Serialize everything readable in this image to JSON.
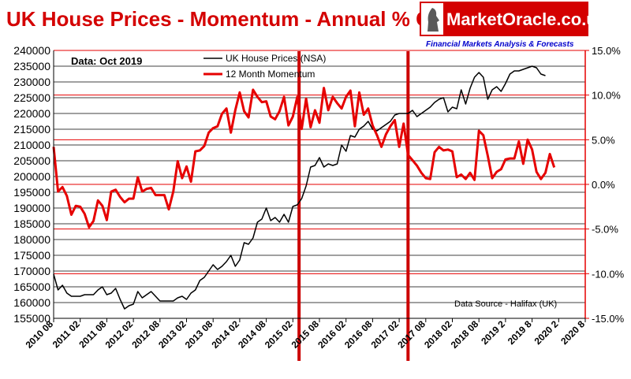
{
  "logo": {
    "name": "MarketOracle.co.uk",
    "tagline": "Financial Markets Analysis & Forecasts"
  },
  "colors": {
    "title": "#d40000",
    "momentum": "#e60000",
    "price": "#000000",
    "marker": "#cc0000"
  },
  "chart_data": {
    "type": "line",
    "title": "UK House Prices - Momentum - Annual % Change",
    "annotation": "Data:  Oct 2019",
    "source": "Data Source - Halifax (UK)",
    "x_tick_labels": [
      "2010 08",
      "2011 02",
      "2011 08",
      "2012 02",
      "2012 08",
      "2013 02",
      "2013 08",
      "2014 02",
      "2014 08",
      "2015 02",
      "2015 08",
      "2016 02",
      "2016 08",
      "2017 02",
      "2017 08",
      "2018 02",
      "2018 08",
      "2019 2",
      "2019 8",
      "2020 2",
      "2020 8"
    ],
    "x_range": [
      2010.5833,
      2020.5833
    ],
    "y_left": {
      "range": [
        155000,
        240000
      ],
      "tick_labels": [
        "155000",
        "160000",
        "165000",
        "170000",
        "175000",
        "180000",
        "185000",
        "190000",
        "195000",
        "200000",
        "205000",
        "210000",
        "215000",
        "220000",
        "225000",
        "230000",
        "235000",
        "240000"
      ]
    },
    "y_right": {
      "range": [
        -15,
        15
      ],
      "tick_labels": [
        "15.0%",
        "10.0%",
        "5.0%",
        "0.0%",
        "-5.0%",
        "-10.0%",
        "-15.0%"
      ]
    },
    "vertical_markers": [
      2015.2,
      2017.25
    ],
    "series": [
      {
        "name": "UK House Prices (NSA)",
        "axis": "left",
        "color": "#000000",
        "points": [
          [
            2010.5833,
            169000
          ],
          [
            2010.6667,
            164000
          ],
          [
            2010.75,
            165500
          ],
          [
            2010.8333,
            163000
          ],
          [
            2010.9167,
            162000
          ],
          [
            2011.0,
            162000
          ],
          [
            2011.0833,
            162000
          ],
          [
            2011.1667,
            162500
          ],
          [
            2011.25,
            162500
          ],
          [
            2011.3333,
            162500
          ],
          [
            2011.4167,
            164000
          ],
          [
            2011.5,
            165000
          ],
          [
            2011.5833,
            162500
          ],
          [
            2011.6667,
            163000
          ],
          [
            2011.75,
            164500
          ],
          [
            2011.8333,
            161000
          ],
          [
            2011.9167,
            158000
          ],
          [
            2012.0,
            159000
          ],
          [
            2012.0833,
            159500
          ],
          [
            2012.1667,
            163500
          ],
          [
            2012.25,
            161500
          ],
          [
            2012.3333,
            162500
          ],
          [
            2012.4167,
            163500
          ],
          [
            2012.5,
            162000
          ],
          [
            2012.5833,
            160500
          ],
          [
            2012.6667,
            160500
          ],
          [
            2012.75,
            160500
          ],
          [
            2012.8333,
            160500
          ],
          [
            2012.9167,
            161500
          ],
          [
            2013.0,
            162000
          ],
          [
            2013.0833,
            161000
          ],
          [
            2013.1667,
            163000
          ],
          [
            2013.25,
            164000
          ],
          [
            2013.3333,
            167000
          ],
          [
            2013.4167,
            168000
          ],
          [
            2013.5,
            170000
          ],
          [
            2013.5833,
            172000
          ],
          [
            2013.6667,
            170500
          ],
          [
            2013.75,
            171500
          ],
          [
            2013.8333,
            173000
          ],
          [
            2013.9167,
            175000
          ],
          [
            2014.0,
            171500
          ],
          [
            2014.0833,
            173500
          ],
          [
            2014.1667,
            179000
          ],
          [
            2014.25,
            178500
          ],
          [
            2014.3333,
            180500
          ],
          [
            2014.4167,
            185500
          ],
          [
            2014.5,
            186500
          ],
          [
            2014.5833,
            190000
          ],
          [
            2014.6667,
            186000
          ],
          [
            2014.75,
            187000
          ],
          [
            2014.8333,
            185500
          ],
          [
            2014.9167,
            188000
          ],
          [
            2015.0,
            185500
          ],
          [
            2015.0833,
            190500
          ],
          [
            2015.1667,
            191000
          ],
          [
            2015.25,
            193000
          ],
          [
            2015.3333,
            197000
          ],
          [
            2015.4167,
            203000
          ],
          [
            2015.5,
            203500
          ],
          [
            2015.5833,
            206000
          ],
          [
            2015.6667,
            203000
          ],
          [
            2015.75,
            204000
          ],
          [
            2015.8333,
            203500
          ],
          [
            2015.9167,
            204000
          ],
          [
            2016.0,
            210000
          ],
          [
            2016.0833,
            208000
          ],
          [
            2016.1667,
            213000
          ],
          [
            2016.25,
            212500
          ],
          [
            2016.3333,
            215000
          ],
          [
            2016.4167,
            216000
          ],
          [
            2016.5,
            217500
          ],
          [
            2016.5833,
            215000
          ],
          [
            2016.6667,
            214500
          ],
          [
            2016.75,
            215500
          ],
          [
            2016.8333,
            216500
          ],
          [
            2016.9167,
            217500
          ],
          [
            2017.0,
            219500
          ],
          [
            2017.0833,
            220000
          ],
          [
            2017.1667,
            220000
          ],
          [
            2017.25,
            220000
          ],
          [
            2017.3333,
            221000
          ],
          [
            2017.4167,
            219000
          ],
          [
            2017.5,
            220000
          ],
          [
            2017.5833,
            221000
          ],
          [
            2017.6667,
            222000
          ],
          [
            2017.75,
            223500
          ],
          [
            2017.8333,
            224500
          ],
          [
            2017.9167,
            225000
          ],
          [
            2018.0,
            220500
          ],
          [
            2018.0833,
            222000
          ],
          [
            2018.1667,
            221500
          ],
          [
            2018.25,
            227500
          ],
          [
            2018.3333,
            223000
          ],
          [
            2018.4167,
            228000
          ],
          [
            2018.5,
            231500
          ],
          [
            2018.5833,
            233000
          ],
          [
            2018.6667,
            231500
          ],
          [
            2018.75,
            224500
          ],
          [
            2018.8333,
            227500
          ],
          [
            2018.9167,
            228500
          ],
          [
            2019.0,
            227000
          ],
          [
            2019.0833,
            229500
          ],
          [
            2019.1667,
            232500
          ],
          [
            2019.25,
            233500
          ],
          [
            2019.3333,
            233500
          ],
          [
            2019.4167,
            234000
          ],
          [
            2019.5,
            234500
          ],
          [
            2019.5833,
            235000
          ],
          [
            2019.6667,
            234500
          ],
          [
            2019.75,
            232500
          ],
          [
            2019.8333,
            232000
          ]
        ]
      },
      {
        "name": "12 Month Momentum",
        "axis": "right",
        "color": "#e60000",
        "points": [
          [
            2010.5833,
            4.2
          ],
          [
            2010.6667,
            -0.8
          ],
          [
            2010.75,
            -0.3
          ],
          [
            2010.8333,
            -1.3
          ],
          [
            2010.9167,
            -3.4
          ],
          [
            2011.0,
            -2.4
          ],
          [
            2011.0833,
            -2.5
          ],
          [
            2011.1667,
            -3.3
          ],
          [
            2011.25,
            -4.8
          ],
          [
            2011.3333,
            -4.1
          ],
          [
            2011.4167,
            -1.8
          ],
          [
            2011.5,
            -2.4
          ],
          [
            2011.5833,
            -4.0
          ],
          [
            2011.6667,
            -0.8
          ],
          [
            2011.75,
            -0.6
          ],
          [
            2011.8333,
            -1.4
          ],
          [
            2011.9167,
            -2.0
          ],
          [
            2012.0,
            -1.6
          ],
          [
            2012.0833,
            -1.6
          ],
          [
            2012.1667,
            0.8
          ],
          [
            2012.25,
            -0.8
          ],
          [
            2012.3333,
            -0.5
          ],
          [
            2012.4167,
            -0.4
          ],
          [
            2012.5,
            -1.2
          ],
          [
            2012.5833,
            -1.2
          ],
          [
            2012.6667,
            -1.2
          ],
          [
            2012.75,
            -2.8
          ],
          [
            2012.8333,
            -0.8
          ],
          [
            2012.9167,
            2.6
          ],
          [
            2013.0,
            0.7
          ],
          [
            2013.0833,
            2.0
          ],
          [
            2013.1667,
            0.3
          ],
          [
            2013.25,
            3.7
          ],
          [
            2013.3333,
            3.8
          ],
          [
            2013.4167,
            4.3
          ],
          [
            2013.5,
            5.8
          ],
          [
            2013.5833,
            6.3
          ],
          [
            2013.6667,
            6.5
          ],
          [
            2013.75,
            7.9
          ],
          [
            2013.8333,
            8.5
          ],
          [
            2013.9167,
            5.8
          ],
          [
            2014.0,
            8.3
          ],
          [
            2014.0833,
            10.3
          ],
          [
            2014.1667,
            8.2
          ],
          [
            2014.25,
            7.5
          ],
          [
            2014.3333,
            10.6
          ],
          [
            2014.4167,
            9.8
          ],
          [
            2014.5,
            9.2
          ],
          [
            2014.5833,
            9.3
          ],
          [
            2014.6667,
            7.6
          ],
          [
            2014.75,
            7.3
          ],
          [
            2014.8333,
            8.2
          ],
          [
            2014.9167,
            9.8
          ],
          [
            2015.0,
            6.6
          ],
          [
            2015.0833,
            7.6
          ],
          [
            2015.1667,
            9.8
          ],
          [
            2015.25,
            6.2
          ],
          [
            2015.3333,
            9.6
          ],
          [
            2015.4167,
            6.4
          ],
          [
            2015.5,
            8.3
          ],
          [
            2015.5833,
            6.9
          ],
          [
            2015.6667,
            10.8
          ],
          [
            2015.75,
            8.3
          ],
          [
            2015.8333,
            9.8
          ],
          [
            2015.9167,
            9.1
          ],
          [
            2016.0,
            8.5
          ],
          [
            2016.0833,
            9.8
          ],
          [
            2016.1667,
            10.5
          ],
          [
            2016.25,
            6.5
          ],
          [
            2016.3333,
            10.3
          ],
          [
            2016.4167,
            7.8
          ],
          [
            2016.5,
            8.5
          ],
          [
            2016.5833,
            6.6
          ],
          [
            2016.6667,
            5.5
          ],
          [
            2016.75,
            4.2
          ],
          [
            2016.8333,
            5.6
          ],
          [
            2016.9167,
            6.5
          ],
          [
            2017.0,
            7.2
          ],
          [
            2017.0833,
            4.2
          ],
          [
            2017.1667,
            6.8
          ],
          [
            2017.25,
            3.3
          ],
          [
            2017.3333,
            2.7
          ],
          [
            2017.4167,
            2.1
          ],
          [
            2017.5,
            1.3
          ],
          [
            2017.5833,
            0.7
          ],
          [
            2017.6667,
            0.6
          ],
          [
            2017.75,
            3.6
          ],
          [
            2017.8333,
            4.2
          ],
          [
            2017.9167,
            3.8
          ],
          [
            2018.0,
            3.9
          ],
          [
            2018.0833,
            3.7
          ],
          [
            2018.1667,
            0.8
          ],
          [
            2018.25,
            1.1
          ],
          [
            2018.3333,
            0.6
          ],
          [
            2018.4167,
            1.3
          ],
          [
            2018.5,
            0.5
          ],
          [
            2018.5833,
            6.0
          ],
          [
            2018.6667,
            5.5
          ],
          [
            2018.75,
            3.2
          ],
          [
            2018.8333,
            0.7
          ],
          [
            2018.9167,
            1.4
          ],
          [
            2019.0,
            1.7
          ],
          [
            2019.0833,
            2.8
          ],
          [
            2019.1667,
            2.9
          ],
          [
            2019.25,
            2.9
          ],
          [
            2019.3333,
            4.8
          ],
          [
            2019.4167,
            2.3
          ],
          [
            2019.5,
            5.0
          ],
          [
            2019.5833,
            3.9
          ],
          [
            2019.6667,
            1.4
          ],
          [
            2019.75,
            0.6
          ],
          [
            2019.8333,
            1.3
          ],
          [
            2019.9167,
            3.4
          ],
          [
            2020.0,
            1.9
          ]
        ]
      }
    ]
  }
}
